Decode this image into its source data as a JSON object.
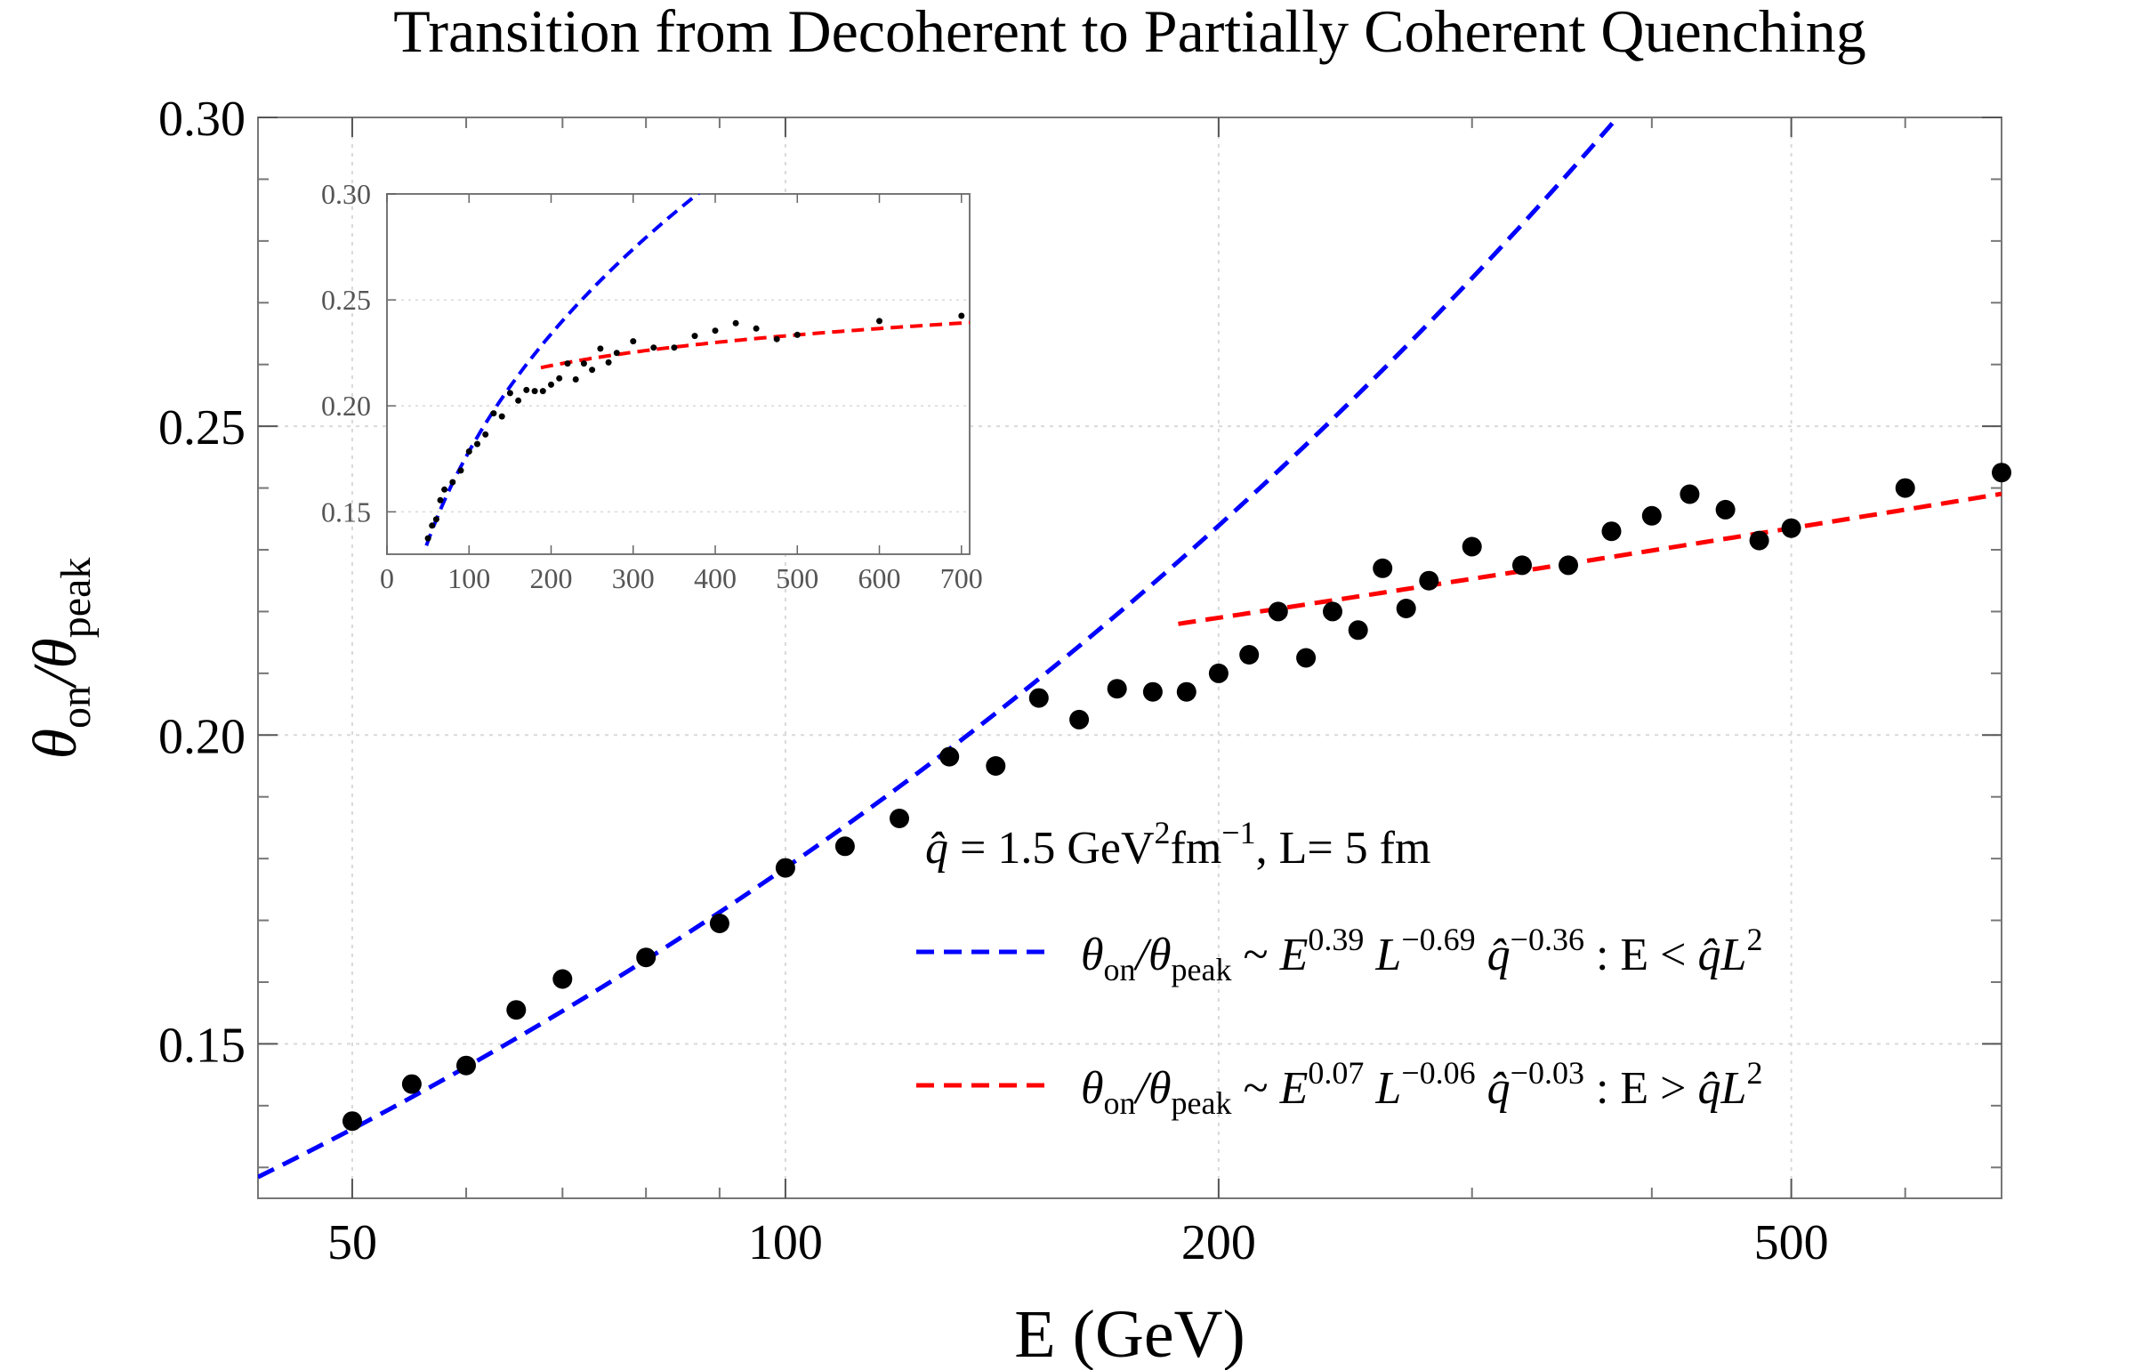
{
  "chart_data": {
    "type": "scatter",
    "title": "Transition from Decoherent to Partially Coherent Quenching",
    "xlabel": "E (GeV)",
    "ylabel": "θ_on/θ_peak",
    "ylabel_main": "θ",
    "ylabel_sub1": "on",
    "ylabel_slash": "/θ",
    "ylabel_sub2": "peak",
    "x_scale": "log",
    "xlim": [
      43,
      700
    ],
    "ylim": [
      0.125,
      0.3
    ],
    "x_ticks": [
      {
        "value": 50,
        "label": "50"
      },
      {
        "value": 100,
        "label": "100"
      },
      {
        "value": 200,
        "label": "200"
      },
      {
        "value": 500,
        "label": "500"
      }
    ],
    "y_ticks": [
      {
        "value": 0.15,
        "label": "0.15"
      },
      {
        "value": 0.2,
        "label": "0.20"
      },
      {
        "value": 0.25,
        "label": "0.25"
      },
      {
        "value": 0.3,
        "label": "0.30"
      }
    ],
    "grid": true,
    "points": [
      {
        "x": 50,
        "y": 0.1375
      },
      {
        "x": 55,
        "y": 0.1435
      },
      {
        "x": 60,
        "y": 0.1465
      },
      {
        "x": 65,
        "y": 0.1555
      },
      {
        "x": 70,
        "y": 0.1605
      },
      {
        "x": 80,
        "y": 0.164
      },
      {
        "x": 90,
        "y": 0.1695
      },
      {
        "x": 100,
        "y": 0.1785
      },
      {
        "x": 110,
        "y": 0.182
      },
      {
        "x": 120,
        "y": 0.1865
      },
      {
        "x": 130,
        "y": 0.1965
      },
      {
        "x": 140,
        "y": 0.195
      },
      {
        "x": 150,
        "y": 0.206
      },
      {
        "x": 160,
        "y": 0.2025
      },
      {
        "x": 170,
        "y": 0.2075
      },
      {
        "x": 180,
        "y": 0.207
      },
      {
        "x": 190,
        "y": 0.207
      },
      {
        "x": 200,
        "y": 0.21
      },
      {
        "x": 210,
        "y": 0.213
      },
      {
        "x": 220,
        "y": 0.22
      },
      {
        "x": 230,
        "y": 0.2125
      },
      {
        "x": 240,
        "y": 0.22
      },
      {
        "x": 250,
        "y": 0.217
      },
      {
        "x": 260,
        "y": 0.227
      },
      {
        "x": 270,
        "y": 0.2205
      },
      {
        "x": 280,
        "y": 0.225
      },
      {
        "x": 300,
        "y": 0.2305
      },
      {
        "x": 325,
        "y": 0.2275
      },
      {
        "x": 350,
        "y": 0.2275
      },
      {
        "x": 375,
        "y": 0.233
      },
      {
        "x": 400,
        "y": 0.2355
      },
      {
        "x": 425,
        "y": 0.239
      },
      {
        "x": 450,
        "y": 0.2365
      },
      {
        "x": 475,
        "y": 0.2315
      },
      {
        "x": 500,
        "y": 0.2335
      },
      {
        "x": 600,
        "y": 0.24
      },
      {
        "x": 700,
        "y": 0.2425
      }
    ],
    "series": [
      {
        "name": "θ_on/θ_peak ~ E^0.39 L^-0.69 q̂^-0.36 : E < q̂L²",
        "color": "#0000ff",
        "style": "dashed",
        "function": "power-law",
        "exponent": 0.39,
        "anchor": [
          100,
          0.1785
        ],
        "x_range": [
          43,
          700
        ]
      },
      {
        "name": "θ_on/θ_peak ~ E^0.07 L^-0.06 q̂^-0.03 : E > q̂L²",
        "color": "#ff0000",
        "style": "dashed",
        "function": "power-law",
        "exponent": 0.07,
        "anchor": [
          500,
          0.2335
        ],
        "x_range": [
          187.5,
          700
        ]
      }
    ],
    "annotation": {
      "qhat": "q̂",
      "text_a": " = 1.5 GeV",
      "sup_a": "2",
      "text_b": "fm",
      "sup_b": "−1",
      "text_c": ", L= 5 fm"
    },
    "legend": [
      {
        "color": "#0000ff",
        "E_exp": "0.39",
        "L_exp": "−0.69",
        "q_exp": "−0.36",
        "condition": " : E < "
      },
      {
        "color": "#ff0000",
        "E_exp": "0.07",
        "L_exp": "−0.06",
        "q_exp": "−0.03",
        "condition": " : E > "
      }
    ],
    "legend_text": {
      "theta": "θ",
      "on": "on",
      "slash": "/θ",
      "peak": "peak",
      "tilde": " ~ ",
      "E": "E",
      "L": "L",
      "q": "q̂",
      "qL": "q̂L",
      "two": "2"
    },
    "legend_placement": "lower-right",
    "inset": {
      "type": "scatter",
      "x_scale": "linear",
      "xlim": [
        0,
        710
      ],
      "ylim": [
        0.13,
        0.3
      ],
      "x_ticks": [
        {
          "value": 0,
          "label": "0"
        },
        {
          "value": 100,
          "label": "100"
        },
        {
          "value": 200,
          "label": "200"
        },
        {
          "value": 300,
          "label": "300"
        },
        {
          "value": 400,
          "label": "400"
        },
        {
          "value": 500,
          "label": "500"
        },
        {
          "value": 600,
          "label": "600"
        },
        {
          "value": 700,
          "label": "700"
        }
      ],
      "y_ticks": [
        {
          "value": 0.15,
          "label": "0.15"
        },
        {
          "value": 0.2,
          "label": "0.20"
        },
        {
          "value": 0.25,
          "label": "0.25"
        },
        {
          "value": 0.3,
          "label": "0.30"
        }
      ],
      "blue_x_range": [
        48,
        390
      ],
      "red_x_range": [
        187.5,
        710
      ]
    }
  }
}
